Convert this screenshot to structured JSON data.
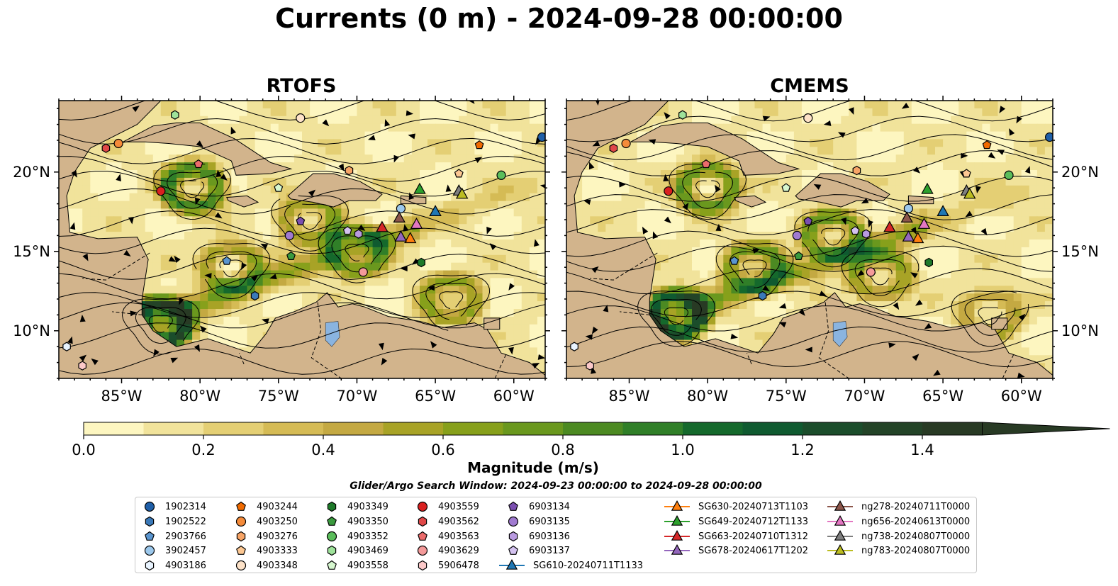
{
  "title": "Currents (0 m) - 2024-09-28 00:00:00",
  "chart_data": {
    "type": "map",
    "panels": [
      {
        "title": "RTOFS",
        "lon_range": [
          -89,
          -58
        ],
        "lat_range": [
          7,
          24.5
        ],
        "eddies": [
          [
            -82.5,
            10.5,
            1.2
          ],
          [
            -80.5,
            19,
            0.8
          ],
          [
            -78,
            14,
            0.5
          ],
          [
            -73,
            17,
            0.5
          ],
          [
            -70,
            15,
            0.6
          ],
          [
            -64,
            12,
            0.5
          ]
        ]
      },
      {
        "title": "CMEMS",
        "lon_range": [
          -89,
          -58
        ],
        "lat_range": [
          7,
          24.5
        ],
        "eddies": [
          [
            -82,
            11,
            1.1
          ],
          [
            -80,
            19,
            0.7
          ],
          [
            -77,
            14,
            0.6
          ],
          [
            -72,
            16,
            0.6
          ],
          [
            -69,
            13.5,
            0.5
          ],
          [
            -62,
            11,
            0.4
          ]
        ]
      }
    ],
    "xticks": [
      -85,
      -80,
      -75,
      -70,
      -65,
      -60
    ],
    "xtick_labels": [
      "85°W",
      "80°W",
      "75°W",
      "70°W",
      "65°W",
      "60°W"
    ],
    "yticks": [
      10,
      15,
      20
    ],
    "ytick_labels": [
      "10°N",
      "15°N",
      "20°N"
    ],
    "colorbar": {
      "label": "Magnitude (m/s)",
      "min": 0.0,
      "max": 1.5,
      "step": 0.1,
      "ticks": [
        0.0,
        0.2,
        0.4,
        0.6,
        0.8,
        1.0,
        1.2,
        1.4
      ],
      "tick_labels": [
        "0.0",
        "0.2",
        "0.4",
        "0.6",
        "0.8",
        "1.0",
        "1.2",
        "1.4"
      ],
      "extend": "max",
      "colors": [
        "#fdf6c0",
        "#f1e39b",
        "#e4cf74",
        "#d5bb55",
        "#c4a942",
        "#a8a326",
        "#87a01b",
        "#6a981e",
        "#4c8a22",
        "#307f28",
        "#15692c",
        "#0f5a30",
        "#1b4d2b",
        "#234327",
        "#283a24"
      ]
    },
    "land_color": "#d2b48c",
    "lake_color": "#8ab4e0",
    "search_window": "Glider/Argo Search Window: 2024-09-23 00:00:00 to 2024-09-28 00:00:00",
    "floats": [
      {
        "id": "1902314",
        "marker": "circle",
        "color": "#1f5fa8",
        "lon": -58.2,
        "lat": 22.2
      },
      {
        "id": "1902522",
        "marker": "hexagon",
        "color": "#3a79b8",
        "lon": -76.5,
        "lat": 12.2
      },
      {
        "id": "2903766",
        "marker": "pentagon",
        "color": "#5a95cf",
        "lon": -78.3,
        "lat": 14.4
      },
      {
        "id": "3902457",
        "marker": "circle",
        "color": "#9cc8ec",
        "lon": -67.2,
        "lat": 17.7
      },
      {
        "id": "4903186",
        "marker": "hexagon",
        "color": "#e9f4ff",
        "lon": -88.5,
        "lat": 9.0
      },
      {
        "id": "4903244",
        "marker": "pentagon",
        "color": "#f06a00",
        "lon": -62.2,
        "lat": 21.7
      },
      {
        "id": "4903250",
        "marker": "circle",
        "color": "#f58b3a",
        "lon": -85.2,
        "lat": 21.8
      },
      {
        "id": "4903276",
        "marker": "hexagon",
        "color": "#f7a466",
        "lon": -70.5,
        "lat": 20.1
      },
      {
        "id": "4903333",
        "marker": "pentagon",
        "color": "#fcc792",
        "lon": -63.5,
        "lat": 19.9
      },
      {
        "id": "4903348",
        "marker": "circle",
        "color": "#fde2c8",
        "lon": -73.6,
        "lat": 23.4
      },
      {
        "id": "4903349",
        "marker": "hexagon",
        "color": "#1e7a2a",
        "lon": -65.9,
        "lat": 14.3
      },
      {
        "id": "4903350",
        "marker": "pentagon",
        "color": "#3a9a3e",
        "lon": -74.2,
        "lat": 14.7
      },
      {
        "id": "4903352",
        "marker": "circle",
        "color": "#5bbd5b",
        "lon": -60.8,
        "lat": 19.8
      },
      {
        "id": "4903469",
        "marker": "hexagon",
        "color": "#9ee29a",
        "lon": -81.6,
        "lat": 23.6
      },
      {
        "id": "4903558",
        "marker": "pentagon",
        "color": "#d6f7cf",
        "lon": -75.0,
        "lat": 19.0
      },
      {
        "id": "4903559",
        "marker": "circle",
        "color": "#d92020",
        "lon": -82.5,
        "lat": 18.8
      },
      {
        "id": "4903562",
        "marker": "hexagon",
        "color": "#e04848",
        "lon": -86.0,
        "lat": 21.5
      },
      {
        "id": "4903563",
        "marker": "pentagon",
        "color": "#eb6b6b",
        "lon": -80.1,
        "lat": 20.5
      },
      {
        "id": "4903629",
        "marker": "circle",
        "color": "#f49a9a",
        "lon": -69.6,
        "lat": 13.7
      },
      {
        "id": "5906478",
        "marker": "hexagon",
        "color": "#fcc9c9",
        "lon": -87.5,
        "lat": 7.8
      },
      {
        "id": "6903134",
        "marker": "pentagon",
        "color": "#7b4fb0",
        "lon": -73.6,
        "lat": 16.9
      },
      {
        "id": "6903135",
        "marker": "circle",
        "color": "#a07ad0",
        "lon": -74.3,
        "lat": 16.0
      },
      {
        "id": "6903136",
        "marker": "hexagon",
        "color": "#b99ae0",
        "lon": -69.9,
        "lat": 16.1
      },
      {
        "id": "6903137",
        "marker": "pentagon",
        "color": "#d4c2f0",
        "lon": -70.6,
        "lat": 16.3
      }
    ],
    "gliders": [
      {
        "id": "SG610-20240711T1133",
        "color": "#1f77b4",
        "lon": -65.0,
        "lat": 17.5
      },
      {
        "id": "SG630-20240713T1103",
        "color": "#ff7f0e",
        "lon": -66.6,
        "lat": 15.8
      },
      {
        "id": "SG649-20240712T1133",
        "color": "#2ca02c",
        "lon": -66.0,
        "lat": 18.9
      },
      {
        "id": "SG663-20240710T1312",
        "color": "#d62728",
        "lon": -68.4,
        "lat": 16.5
      },
      {
        "id": "SG678-20240617T1202",
        "color": "#9467bd",
        "lon": -67.2,
        "lat": 15.9
      },
      {
        "id": "ng278-20240711T0000",
        "color": "#8c564b",
        "lon": -67.3,
        "lat": 17.1
      },
      {
        "id": "ng656-20240613T0000",
        "color": "#e377c2",
        "lon": -66.2,
        "lat": 16.7
      },
      {
        "id": "ng738-20240807T0000",
        "color": "#7f7f7f",
        "lon": -63.5,
        "lat": 18.8
      },
      {
        "id": "ng783-20240807T0000",
        "color": "#bcbd22",
        "lon": -63.3,
        "lat": 18.6
      }
    ]
  }
}
